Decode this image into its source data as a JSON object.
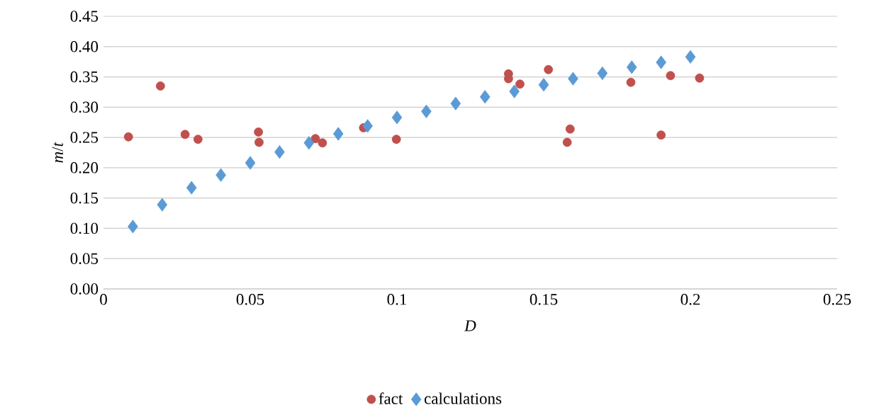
{
  "chart_data": {
    "type": "scatter",
    "xlabel": "*D*",
    "ylabel": "*m*/*t*",
    "xlim": [
      0,
      0.25
    ],
    "xticks": [
      0,
      0.05,
      0.1,
      0.15,
      0.2,
      0.25
    ],
    "ylim": [
      0,
      0.45
    ],
    "yticks": [
      {
        "value": 0,
        "label": "0.00"
      },
      {
        "value": 0.05,
        "label": "0.05"
      },
      {
        "value": 0.1,
        "label": "0.10"
      },
      {
        "value": 0.15,
        "label": "0.15"
      },
      {
        "value": 0.2,
        "label": "0.20"
      },
      {
        "value": 0.25,
        "label": "0.25"
      },
      {
        "value": 0.3,
        "label": "0.30"
      },
      {
        "value": 0.35,
        "label": "0.35"
      },
      {
        "value": 0.4,
        "label": "0.40"
      },
      {
        "value": 0.45,
        "label": "0.45"
      }
    ],
    "grid": "y",
    "legend": "bottom",
    "series": [
      {
        "name": "fact",
        "color": "#c0504d",
        "marker": "circle",
        "x": [
          0.0085,
          0.0194,
          0.0278,
          0.0322,
          0.0528,
          0.053,
          0.0722,
          0.0746,
          0.0886,
          0.0998,
          0.138,
          0.138,
          0.1419,
          0.1516,
          0.159,
          0.158,
          0.1797,
          0.19,
          0.1932,
          0.2031
        ],
        "values": [
          0.251,
          0.335,
          0.255,
          0.247,
          0.259,
          0.242,
          0.248,
          0.241,
          0.266,
          0.247,
          0.355,
          0.347,
          0.338,
          0.362,
          0.264,
          0.242,
          0.341,
          0.254,
          0.352,
          0.348
        ]
      },
      {
        "name": "calculations",
        "color": "#5b9bd5",
        "marker": "diamond",
        "x": [
          0.01,
          0.02,
          0.03,
          0.04,
          0.05,
          0.06,
          0.07,
          0.08,
          0.09,
          0.1,
          0.11,
          0.12,
          0.13,
          0.14,
          0.15,
          0.16,
          0.17,
          0.18,
          0.19,
          0.2
        ],
        "values": [
          0.103,
          0.139,
          0.167,
          0.188,
          0.208,
          0.226,
          0.241,
          0.256,
          0.269,
          0.283,
          0.293,
          0.306,
          0.317,
          0.326,
          0.337,
          0.347,
          0.356,
          0.366,
          0.374,
          0.383
        ]
      }
    ]
  }
}
